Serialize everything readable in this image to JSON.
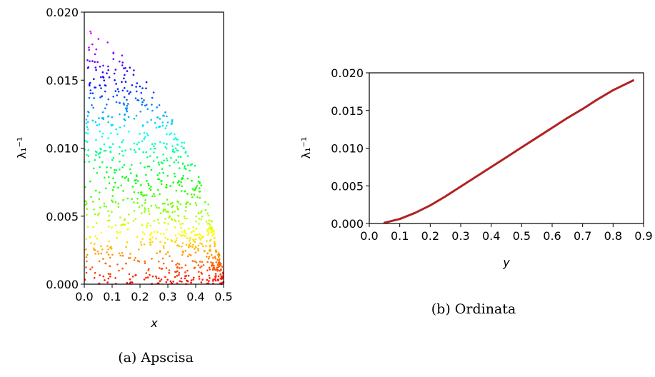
{
  "chart_data": [
    {
      "type": "scatter",
      "caption": "(a) Apscisa",
      "xlabel": "x",
      "ylabel": "λ₁⁻¹",
      "xlim": [
        0.0,
        0.5
      ],
      "ylim": [
        0.0,
        0.02
      ],
      "xticks": [
        "0.0",
        "0.1",
        "0.2",
        "0.3",
        "0.4",
        "0.5"
      ],
      "yticks": [
        "0.000",
        "0.005",
        "0.010",
        "0.015",
        "0.020"
      ],
      "color_scale": "rainbow by λ₁⁻¹ (red at 0.000, magenta at 0.019)",
      "boundary": [
        {
          "x": 0.0,
          "y": 0.019
        },
        {
          "x": 0.05,
          "y": 0.0184
        },
        {
          "x": 0.1,
          "y": 0.0176
        },
        {
          "x": 0.15,
          "y": 0.0166
        },
        {
          "x": 0.2,
          "y": 0.0155
        },
        {
          "x": 0.25,
          "y": 0.0142
        },
        {
          "x": 0.3,
          "y": 0.0127
        },
        {
          "x": 0.35,
          "y": 0.0109
        },
        {
          "x": 0.4,
          "y": 0.0086
        },
        {
          "x": 0.45,
          "y": 0.0056
        },
        {
          "x": 0.5,
          "y": 0.0008
        }
      ],
      "point_count": 1000,
      "grid": false
    },
    {
      "type": "line",
      "caption": "(b) Ordinata",
      "xlabel": "y",
      "ylabel": "λ₁⁻¹",
      "xlim": [
        0.0,
        0.9
      ],
      "ylim": [
        0.0,
        0.02
      ],
      "xticks": [
        "0.0",
        "0.1",
        "0.2",
        "0.3",
        "0.4",
        "0.5",
        "0.6",
        "0.7",
        "0.8",
        "0.9"
      ],
      "yticks": [
        "0.000",
        "0.005",
        "0.010",
        "0.015",
        "0.020"
      ],
      "color": "#b22222",
      "series": [
        {
          "x": [
            0.05,
            0.1,
            0.15,
            0.2,
            0.25,
            0.3,
            0.35,
            0.4,
            0.45,
            0.5,
            0.55,
            0.6,
            0.65,
            0.7,
            0.75,
            0.8,
            0.866
          ],
          "y": [
            0.0001,
            0.0006,
            0.0014,
            0.0024,
            0.0036,
            0.0049,
            0.0062,
            0.0075,
            0.0088,
            0.0101,
            0.0114,
            0.0127,
            0.014,
            0.0152,
            0.0165,
            0.0177,
            0.019
          ]
        }
      ],
      "grid": false
    }
  ]
}
